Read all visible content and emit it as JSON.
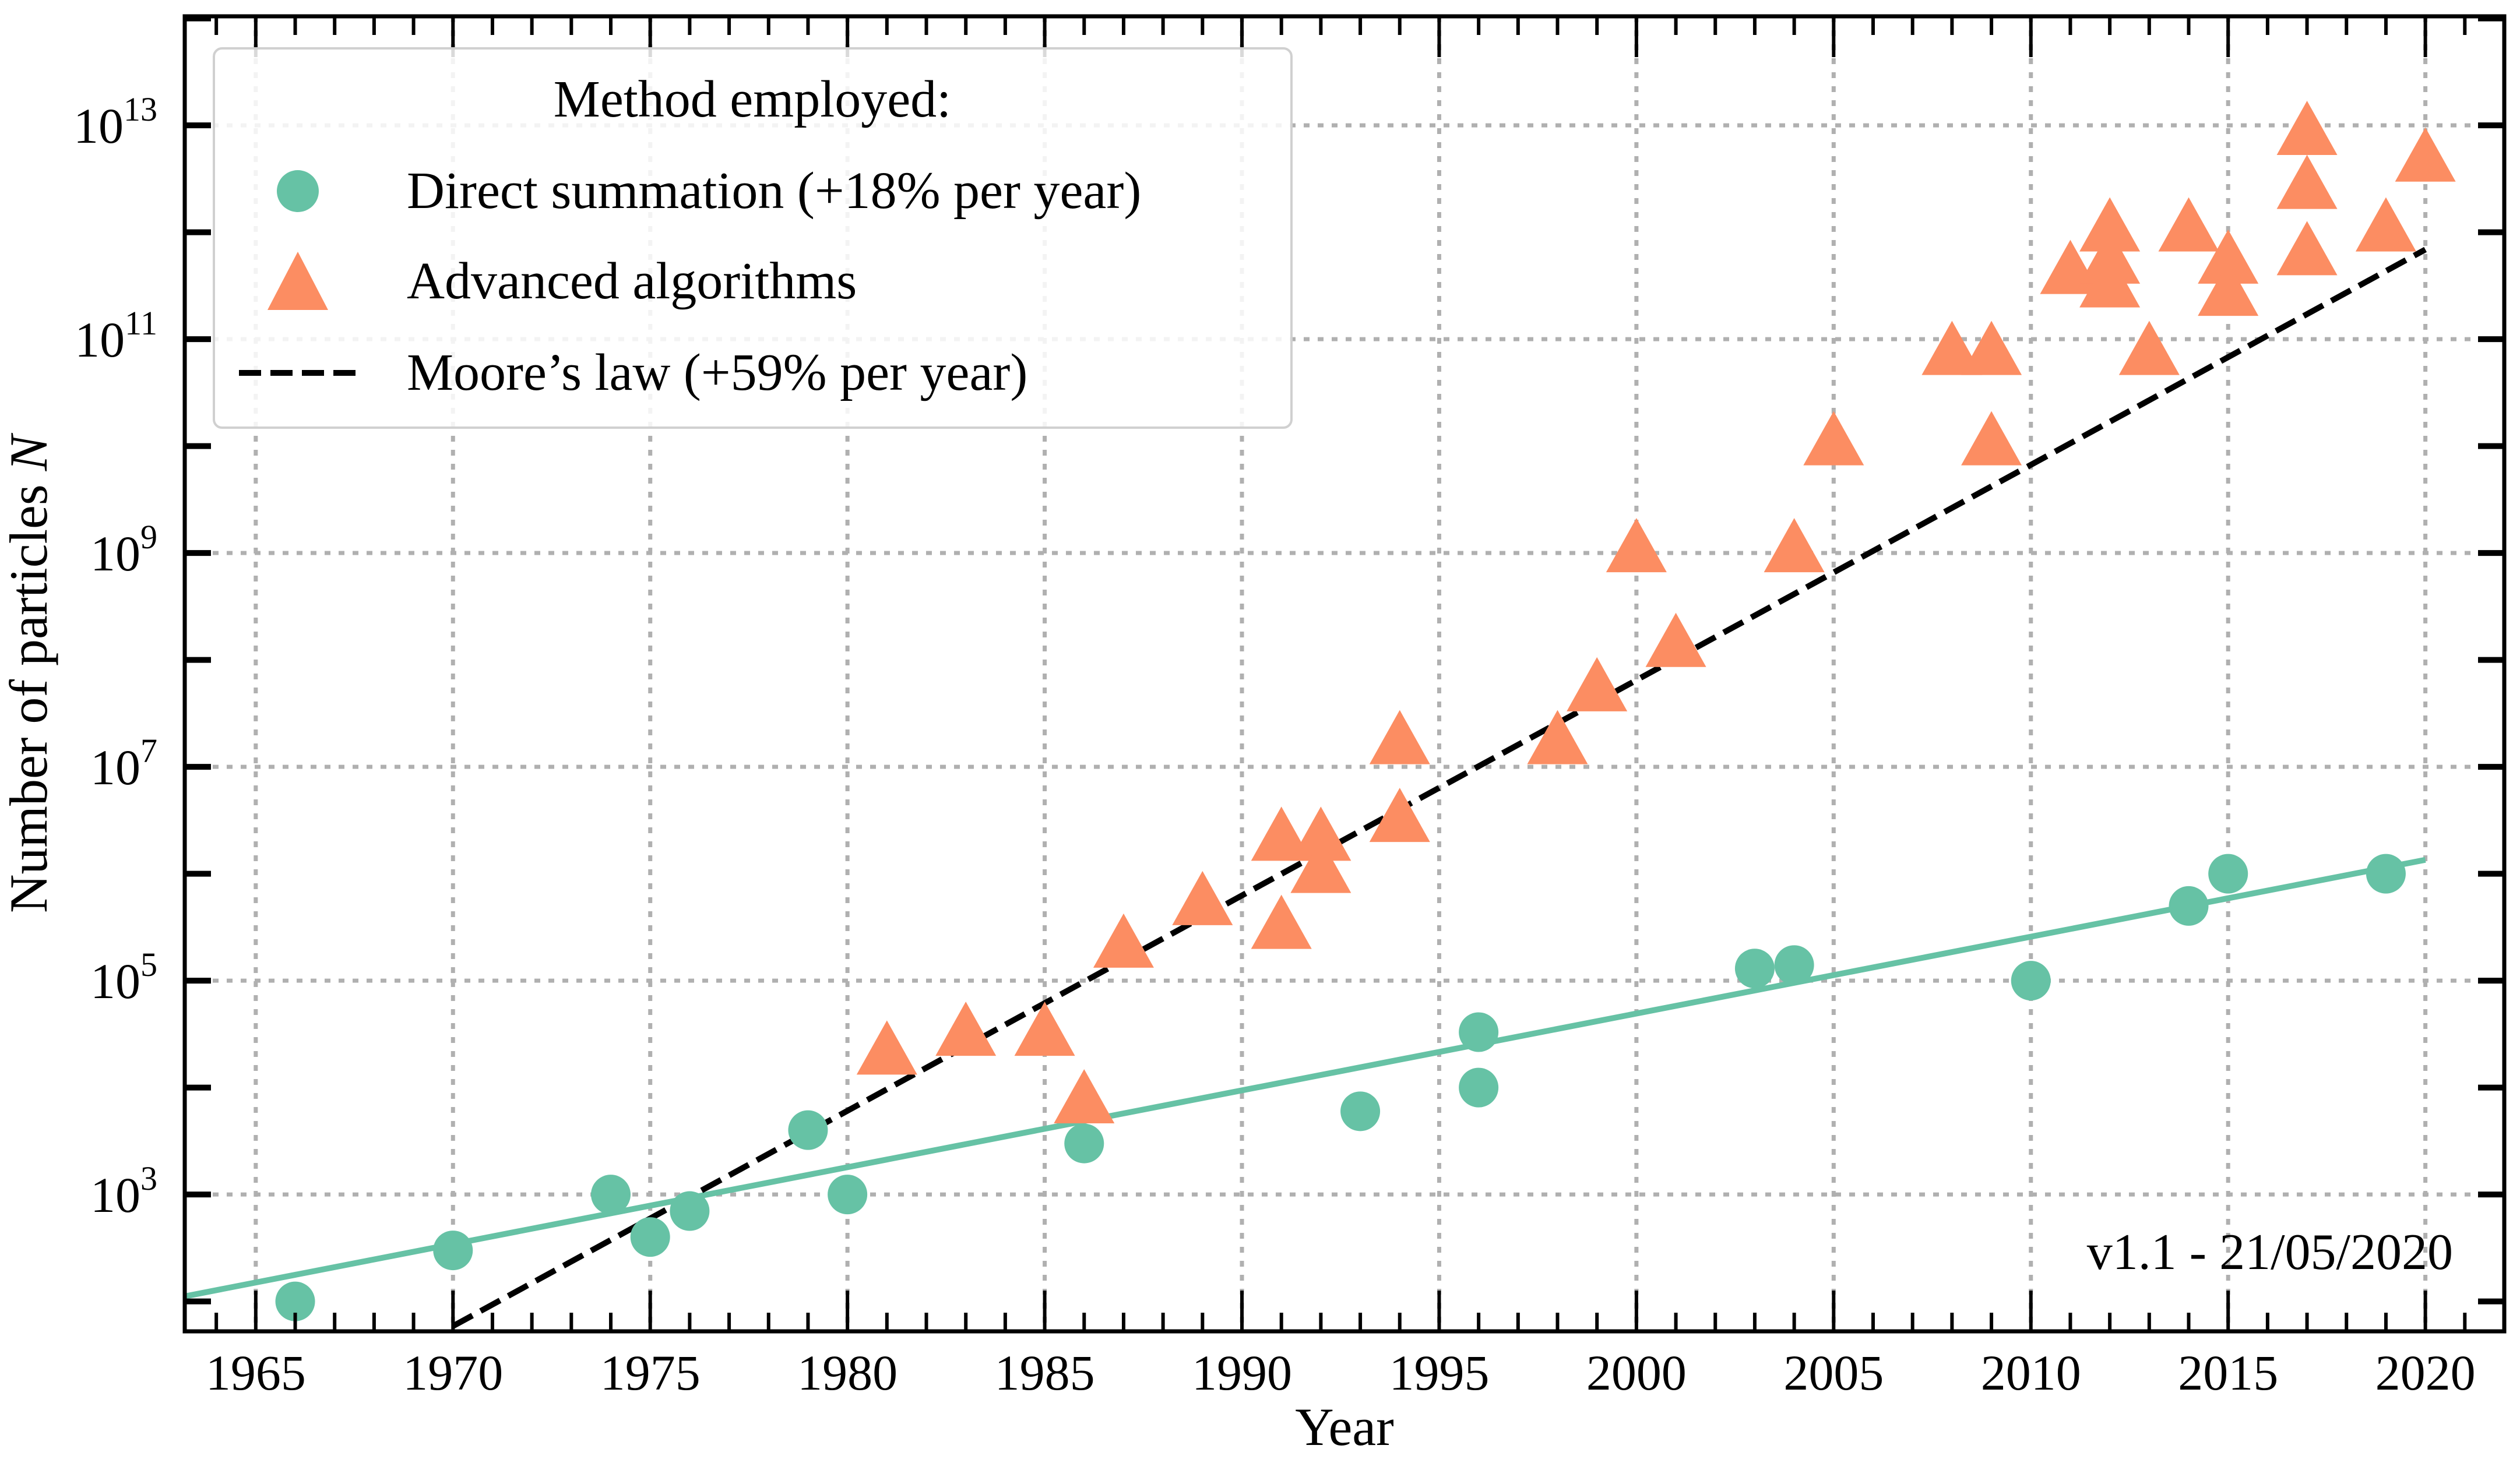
{
  "chart_data": {
    "type": "scatter",
    "title": "",
    "xlabel": "Year",
    "ylabel": "Number of particles N",
    "xlim": [
      1963.2,
      2022
    ],
    "ylim_log10": [
      1.72,
      14.02
    ],
    "y_scale": "log",
    "grid": true,
    "x_ticks": [
      1965,
      1970,
      1975,
      1980,
      1985,
      1990,
      1995,
      2000,
      2005,
      2010,
      2015,
      2020
    ],
    "y_tick_exponents": [
      3,
      5,
      7,
      9,
      11,
      13
    ],
    "legend": {
      "title": "Method employed:",
      "placement": "top-left",
      "entries": [
        "Direct summation (+18% per year)",
        "Advanced algorithms",
        "Moore’s law (+59% per year)"
      ]
    },
    "annotation": "v1.1 - 21/05/2020",
    "colors": {
      "direct": "#66c2a5",
      "advanced": "#fc8d62",
      "moore": "#000000",
      "grid": "#b0b0b0"
    },
    "series": [
      {
        "name": "Direct summation (+18% per year)",
        "marker": "circle",
        "points": [
          [
            1966,
            100
          ],
          [
            1970,
            300
          ],
          [
            1974,
            1000
          ],
          [
            1975,
            400
          ],
          [
            1976,
            700
          ],
          [
            1979,
            4000
          ],
          [
            1980,
            1000
          ],
          [
            1986,
            3000
          ],
          [
            1993,
            6000
          ],
          [
            1996,
            33000
          ],
          [
            1996,
            10000
          ],
          [
            2003,
            130000
          ],
          [
            2004,
            140000
          ],
          [
            2010,
            100000
          ],
          [
            2014,
            500000
          ],
          [
            2015,
            1000000
          ],
          [
            2019,
            1000000
          ]
        ]
      },
      {
        "name": "Advanced algorithms",
        "marker": "triangle",
        "points": [
          [
            1981,
            20000
          ],
          [
            1983,
            30000
          ],
          [
            1985,
            30000
          ],
          [
            1986,
            7000
          ],
          [
            1987,
            200000
          ],
          [
            1989,
            500000
          ],
          [
            1991,
            300000
          ],
          [
            1991,
            2000000
          ],
          [
            1992,
            2000000
          ],
          [
            1992,
            1000000
          ],
          [
            1994,
            16000000
          ],
          [
            1994,
            3000000
          ],
          [
            1998,
            16000000
          ],
          [
            1999,
            50000000
          ],
          [
            2000,
            1000000000
          ],
          [
            2001,
            130000000
          ],
          [
            2004,
            1000000000
          ],
          [
            2005,
            10000000000
          ],
          [
            2008,
            70000000000
          ],
          [
            2009,
            70000000000
          ],
          [
            2009,
            10000000000
          ],
          [
            2011,
            400000000000
          ],
          [
            2012,
            1000000000000
          ],
          [
            2012,
            500000000000
          ],
          [
            2012,
            300000000000
          ],
          [
            2013,
            70000000000
          ],
          [
            2014,
            1000000000000
          ],
          [
            2015,
            500000000000
          ],
          [
            2015,
            250000000000
          ],
          [
            2017,
            8000000000000
          ],
          [
            2017,
            2500000000000
          ],
          [
            2017,
            600000000000
          ],
          [
            2019,
            1000000000000
          ],
          [
            2020,
            4500000000000
          ]
        ]
      }
    ],
    "fits": [
      {
        "name": "Direct summation (+18% per year)",
        "growth_per_year": 0.18,
        "x": [
          1963.2,
          2020
        ],
        "y_at_2020": 1350000
      },
      {
        "name": "Moore’s law (+59% per year)",
        "growth_per_year": 0.59,
        "x": [
          1970,
          2020
        ],
        "y_at_2020": 690000000000
      }
    ]
  }
}
